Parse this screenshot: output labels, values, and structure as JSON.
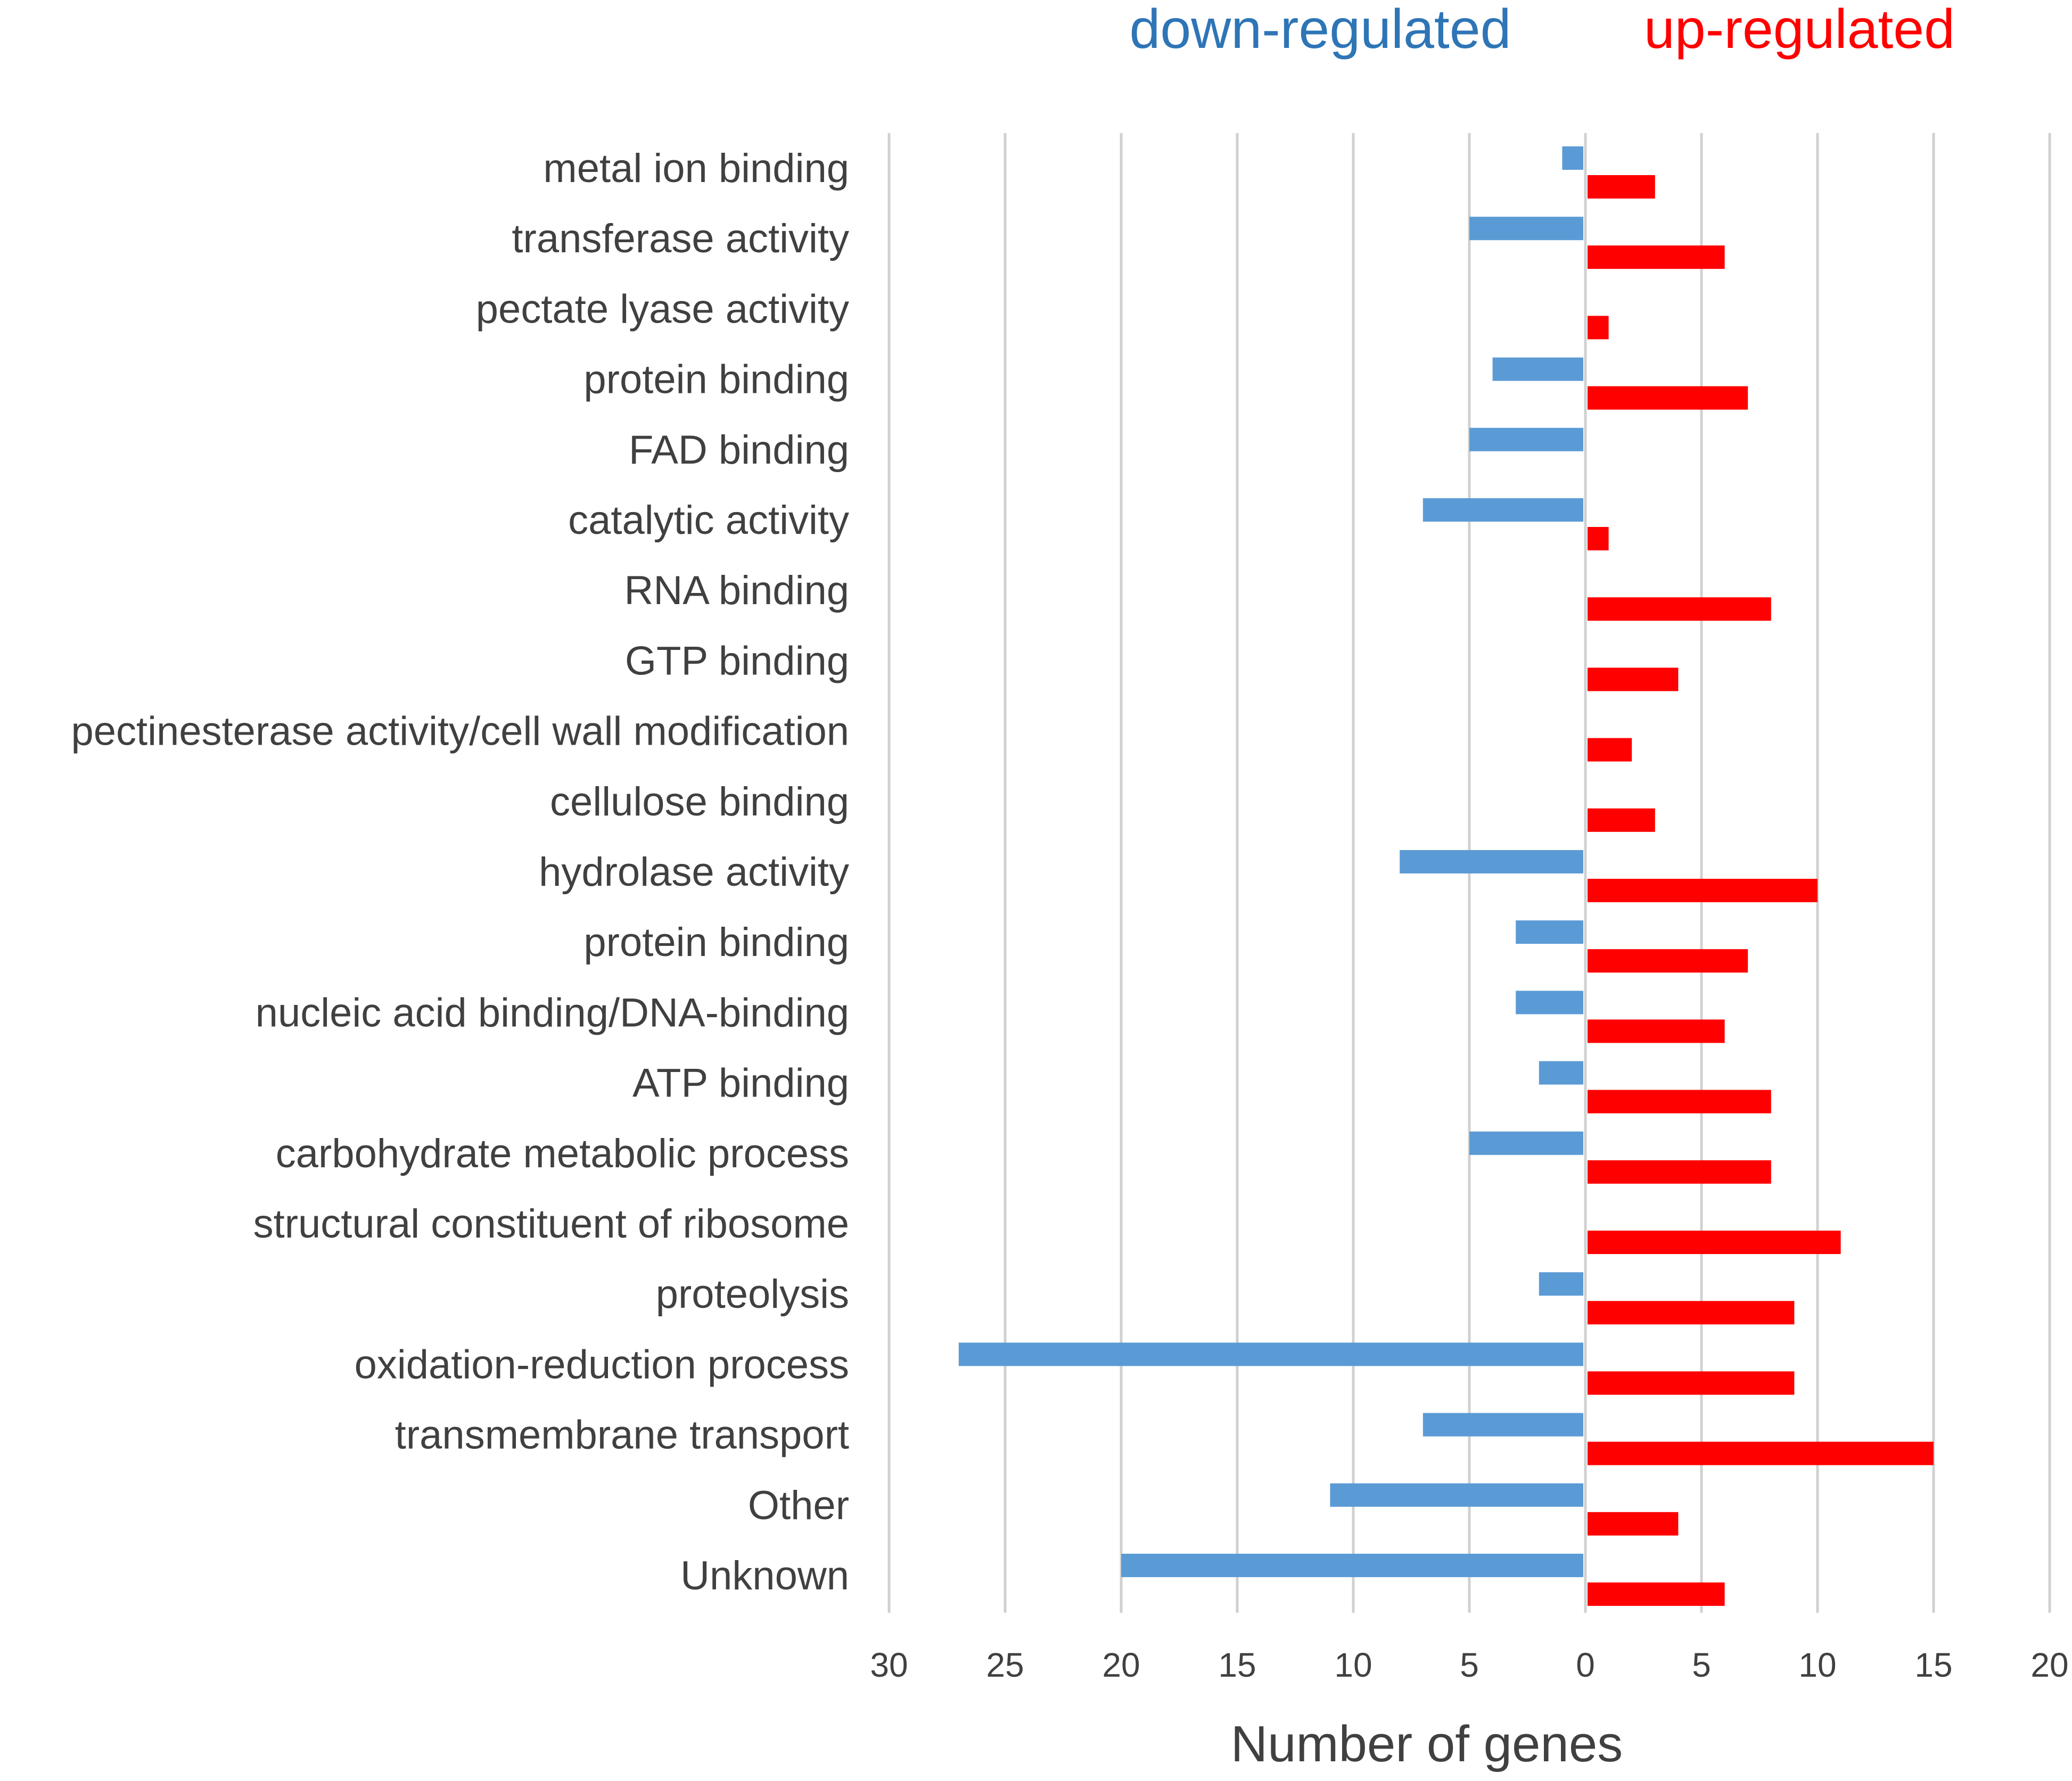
{
  "chart_data": {
    "type": "bar",
    "orientation": "horizontal-diverging",
    "title": "",
    "xlabel": "Number of genes",
    "ylabel": "",
    "legend_position": "top",
    "grid": true,
    "categories": [
      "metal ion binding",
      "transferase activity",
      "pectate lyase activity",
      "protein binding",
      "FAD binding",
      "catalytic activity",
      "RNA binding",
      "GTP binding",
      "pectinesterase activity/cell wall modification",
      "cellulose binding",
      "hydrolase activity",
      "protein binding",
      "nucleic acid binding/DNA-binding",
      "ATP binding",
      "carbohydrate metabolic process",
      "structural constituent of ribosome",
      "proteolysis",
      "oxidation-reduction process",
      "transmembrane transport",
      "Other",
      "Unknown"
    ],
    "series": [
      {
        "name": "down-regulated",
        "color": "#5b9bd5",
        "values": [
          1,
          5,
          0,
          4,
          5,
          7,
          0,
          0,
          0,
          0,
          8,
          3,
          3,
          2,
          5,
          0,
          2,
          27,
          7,
          11,
          20
        ]
      },
      {
        "name": "up-regulated",
        "color": "#ff0000",
        "values": [
          3,
          6,
          1,
          7,
          0,
          1,
          8,
          4,
          2,
          3,
          10,
          7,
          6,
          8,
          8,
          11,
          9,
          9,
          15,
          4,
          6
        ]
      }
    ],
    "xlim": [
      -30,
      20
    ],
    "x_ticks": [
      -30,
      -25,
      -20,
      -15,
      -10,
      -5,
      0,
      5,
      10,
      15,
      20
    ],
    "x_tick_labels": [
      "30",
      "25",
      "20",
      "15",
      "10",
      "5",
      "0",
      "5",
      "10",
      "15",
      "20"
    ]
  },
  "colors": {
    "down": "#2e75b6",
    "up": "#ff0000",
    "grid": "#d0d0d0",
    "text": "#404040"
  }
}
